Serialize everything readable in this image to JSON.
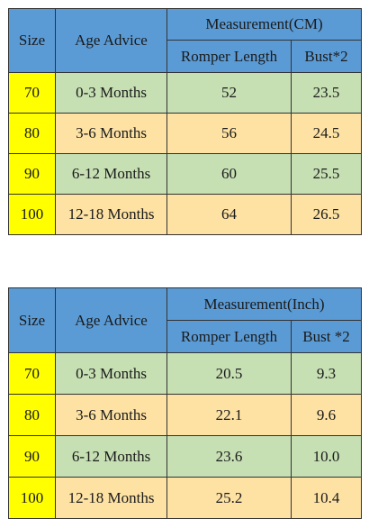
{
  "tables": [
    {
      "size_header": "Size",
      "age_header": "Age Advice",
      "measurement_header": "Measurement(CM)",
      "romper_header": "Romper Length",
      "bust_header": "Bust*2",
      "rows": [
        {
          "size": "70",
          "age": "0-3 Months",
          "romper": "52",
          "bust": "23.5"
        },
        {
          "size": "80",
          "age": "3-6 Months",
          "romper": "56",
          "bust": "24.5"
        },
        {
          "size": "90",
          "age": "6-12 Months",
          "romper": "60",
          "bust": "25.5"
        },
        {
          "size": "100",
          "age": "12-18 Months",
          "romper": "64",
          "bust": "26.5"
        }
      ]
    },
    {
      "size_header": "Size",
      "age_header": "Age Advice",
      "measurement_header": "Measurement(Inch)",
      "romper_header": "Romper Length",
      "bust_header": "Bust *2",
      "rows": [
        {
          "size": "70",
          "age": "0-3 Months",
          "romper": "20.5",
          "bust": "9.3"
        },
        {
          "size": "80",
          "age": "3-6 Months",
          "romper": "22.1",
          "bust": "9.6"
        },
        {
          "size": "90",
          "age": "6-12 Months",
          "romper": "23.6",
          "bust": "10.0"
        },
        {
          "size": "100",
          "age": "12-18 Months",
          "romper": "25.2",
          "bust": "10.4"
        }
      ]
    }
  ],
  "colors": {
    "header_blue": "#5b9bd5",
    "size_yellow": "#ffff00",
    "row_green": "#c6dfb3",
    "row_peach": "#fde2a4"
  }
}
